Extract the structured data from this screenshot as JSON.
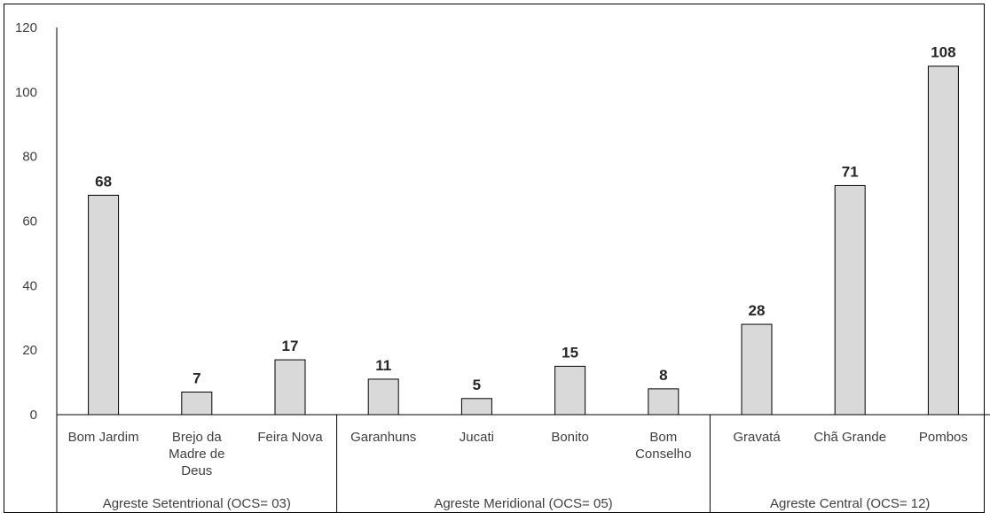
{
  "chart_data": {
    "type": "bar",
    "title": "",
    "xlabel": "",
    "ylabel": "",
    "ylim": [
      0,
      120
    ],
    "yticks": [
      "0",
      "20",
      "40",
      "60",
      "80",
      "100",
      "120"
    ],
    "grid": false,
    "legend": "none",
    "bar_color": "#d9d9d9",
    "categories": [
      [
        "Bom Jardim"
      ],
      [
        "Brejo da",
        "Madre de",
        "Deus"
      ],
      [
        "Feira Nova"
      ],
      [
        "Garanhuns"
      ],
      [
        "Jucati"
      ],
      [
        "Bonito"
      ],
      [
        "Bom",
        "Conselho"
      ],
      [
        "Gravatá"
      ],
      [
        "Chã Grande"
      ],
      [
        "Pombos"
      ]
    ],
    "values": [
      68,
      7,
      17,
      11,
      5,
      15,
      8,
      28,
      71,
      108
    ],
    "value_labels": [
      "68",
      "7",
      "17",
      "11",
      "5",
      "15",
      "8",
      "28",
      "71",
      "108"
    ],
    "groups": [
      {
        "label": "Agreste Setentrional (OCS= 03)",
        "count": 3
      },
      {
        "label": "Agreste Meridional (OCS= 05)",
        "count": 4
      },
      {
        "label": "Agreste Central (OCS= 12)",
        "count": 3
      }
    ]
  }
}
